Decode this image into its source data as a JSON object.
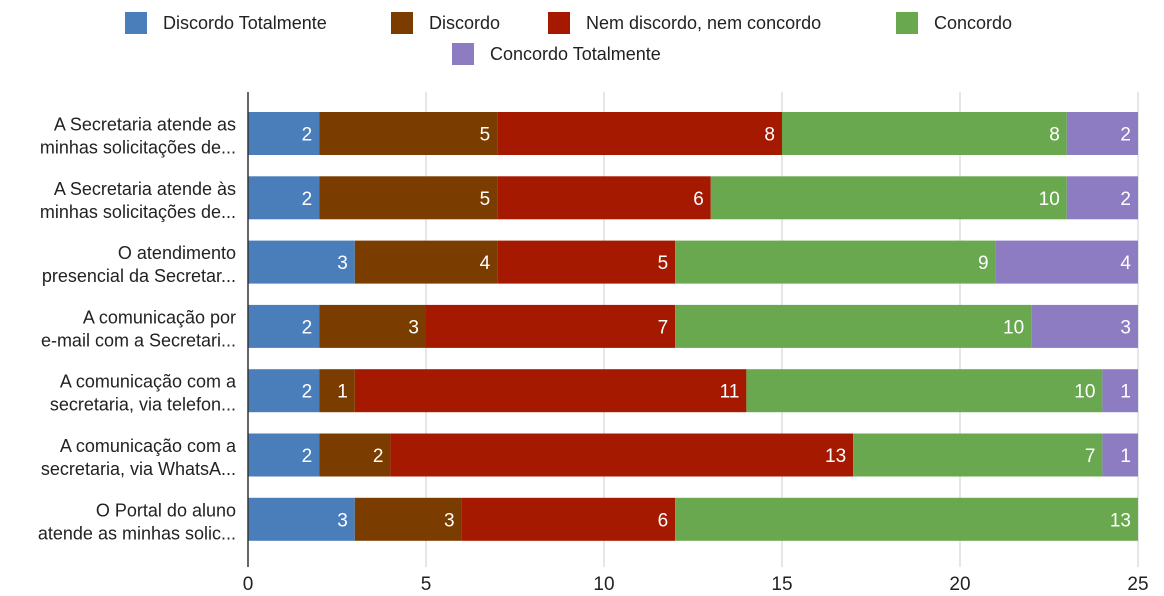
{
  "chart_data": {
    "type": "bar",
    "orientation": "horizontal",
    "stacked": true,
    "title": "",
    "xlabel": "",
    "ylabel": "",
    "xlim": [
      0,
      25
    ],
    "x_ticks": [
      "0",
      "5",
      "10",
      "15",
      "20",
      "25"
    ],
    "grid": true,
    "legend_position": "top",
    "categories": [
      [
        "A Secretaria atende as",
        "minhas solicitações de..."
      ],
      [
        "A Secretaria atende às",
        "minhas solicitações de..."
      ],
      [
        "O atendimento",
        "presencial da Secretar..."
      ],
      [
        "A comunicação por",
        "e-mail com a Secretari..."
      ],
      [
        "A comunicação com a",
        "secretaria, via telefon..."
      ],
      [
        "A comunicação com a",
        "secretaria, via WhatsA..."
      ],
      [
        "O Portal do aluno",
        "atende as minhas solic..."
      ]
    ],
    "series": [
      {
        "name": "Discordo Totalmente",
        "color": "#4a7ebb",
        "values": [
          2,
          2,
          3,
          2,
          2,
          2,
          3
        ]
      },
      {
        "name": "Discordo",
        "color": "#7b3c00",
        "values": [
          5,
          5,
          4,
          3,
          1,
          2,
          3
        ]
      },
      {
        "name": "Nem discordo, nem concordo",
        "color": "#a51900",
        "values": [
          8,
          6,
          5,
          7,
          11,
          13,
          6
        ]
      },
      {
        "name": "Concordo",
        "color": "#6aa84f",
        "values": [
          8,
          10,
          9,
          10,
          10,
          7,
          13
        ]
      },
      {
        "name": "Concordo Totalmente",
        "color": "#8e7cc3",
        "values": [
          2,
          2,
          4,
          3,
          1,
          1,
          0
        ]
      }
    ]
  }
}
